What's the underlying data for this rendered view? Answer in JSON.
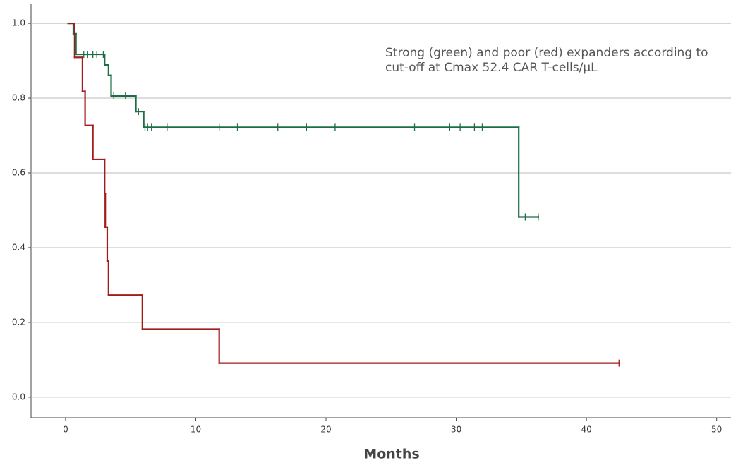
{
  "chart_data": {
    "type": "step",
    "annotation": [
      "Strong (green) and poor (red) expanders according to",
      "cut-off at Cmax 52.4 CAR T-cells/µL"
    ],
    "x_label": "Months",
    "xlim": [
      -2.65,
      51.1
    ],
    "ylim": [
      -0.055,
      1.053
    ],
    "xticks": [
      0,
      10,
      20,
      30,
      40,
      50
    ],
    "yticks": [
      {
        "value": 0,
        "label": "0.0"
      },
      0.2,
      0.4,
      0.6,
      0.8,
      {
        "value": 1,
        "label": "1.0"
      }
    ],
    "grid": true,
    "series": [
      {
        "color": "#1e6e45",
        "x": [
          0.2,
          0.6,
          0.8,
          3.0,
          3.3,
          3.5,
          5.4,
          6.0,
          34.8,
          36.3
        ],
        "values": [
          1.0,
          0.972,
          0.917,
          0.889,
          0.861,
          0.806,
          0.764,
          0.722,
          0.482,
          0.482
        ],
        "censored": {
          "x": [
            1.4,
            1.7,
            2.1,
            2.4,
            2.9,
            3.7,
            4.6,
            5.6,
            6.1,
            6.3,
            6.6,
            7.8,
            11.8,
            13.2,
            16.3,
            18.5,
            20.7,
            26.8,
            29.5,
            30.3,
            31.4,
            32.0,
            35.3,
            36.3
          ],
          "values": [
            0.917,
            0.917,
            0.917,
            0.917,
            0.917,
            0.806,
            0.806,
            0.764,
            0.722,
            0.722,
            0.722,
            0.722,
            0.722,
            0.722,
            0.722,
            0.722,
            0.722,
            0.722,
            0.722,
            0.722,
            0.722,
            0.722,
            0.482,
            0.482
          ]
        }
      },
      {
        "color": "#a31c1c",
        "x": [
          0.2,
          0.7,
          1.3,
          1.5,
          2.1,
          3.0,
          3.05,
          3.2,
          3.3,
          5.9,
          11.8,
          42.5
        ],
        "values": [
          1.0,
          0.909,
          0.818,
          0.727,
          0.636,
          0.545,
          0.455,
          0.364,
          0.273,
          0.182,
          0.091,
          0.091
        ],
        "censored": {
          "x": [
            42.5
          ],
          "values": [
            0.091
          ]
        }
      }
    ]
  }
}
